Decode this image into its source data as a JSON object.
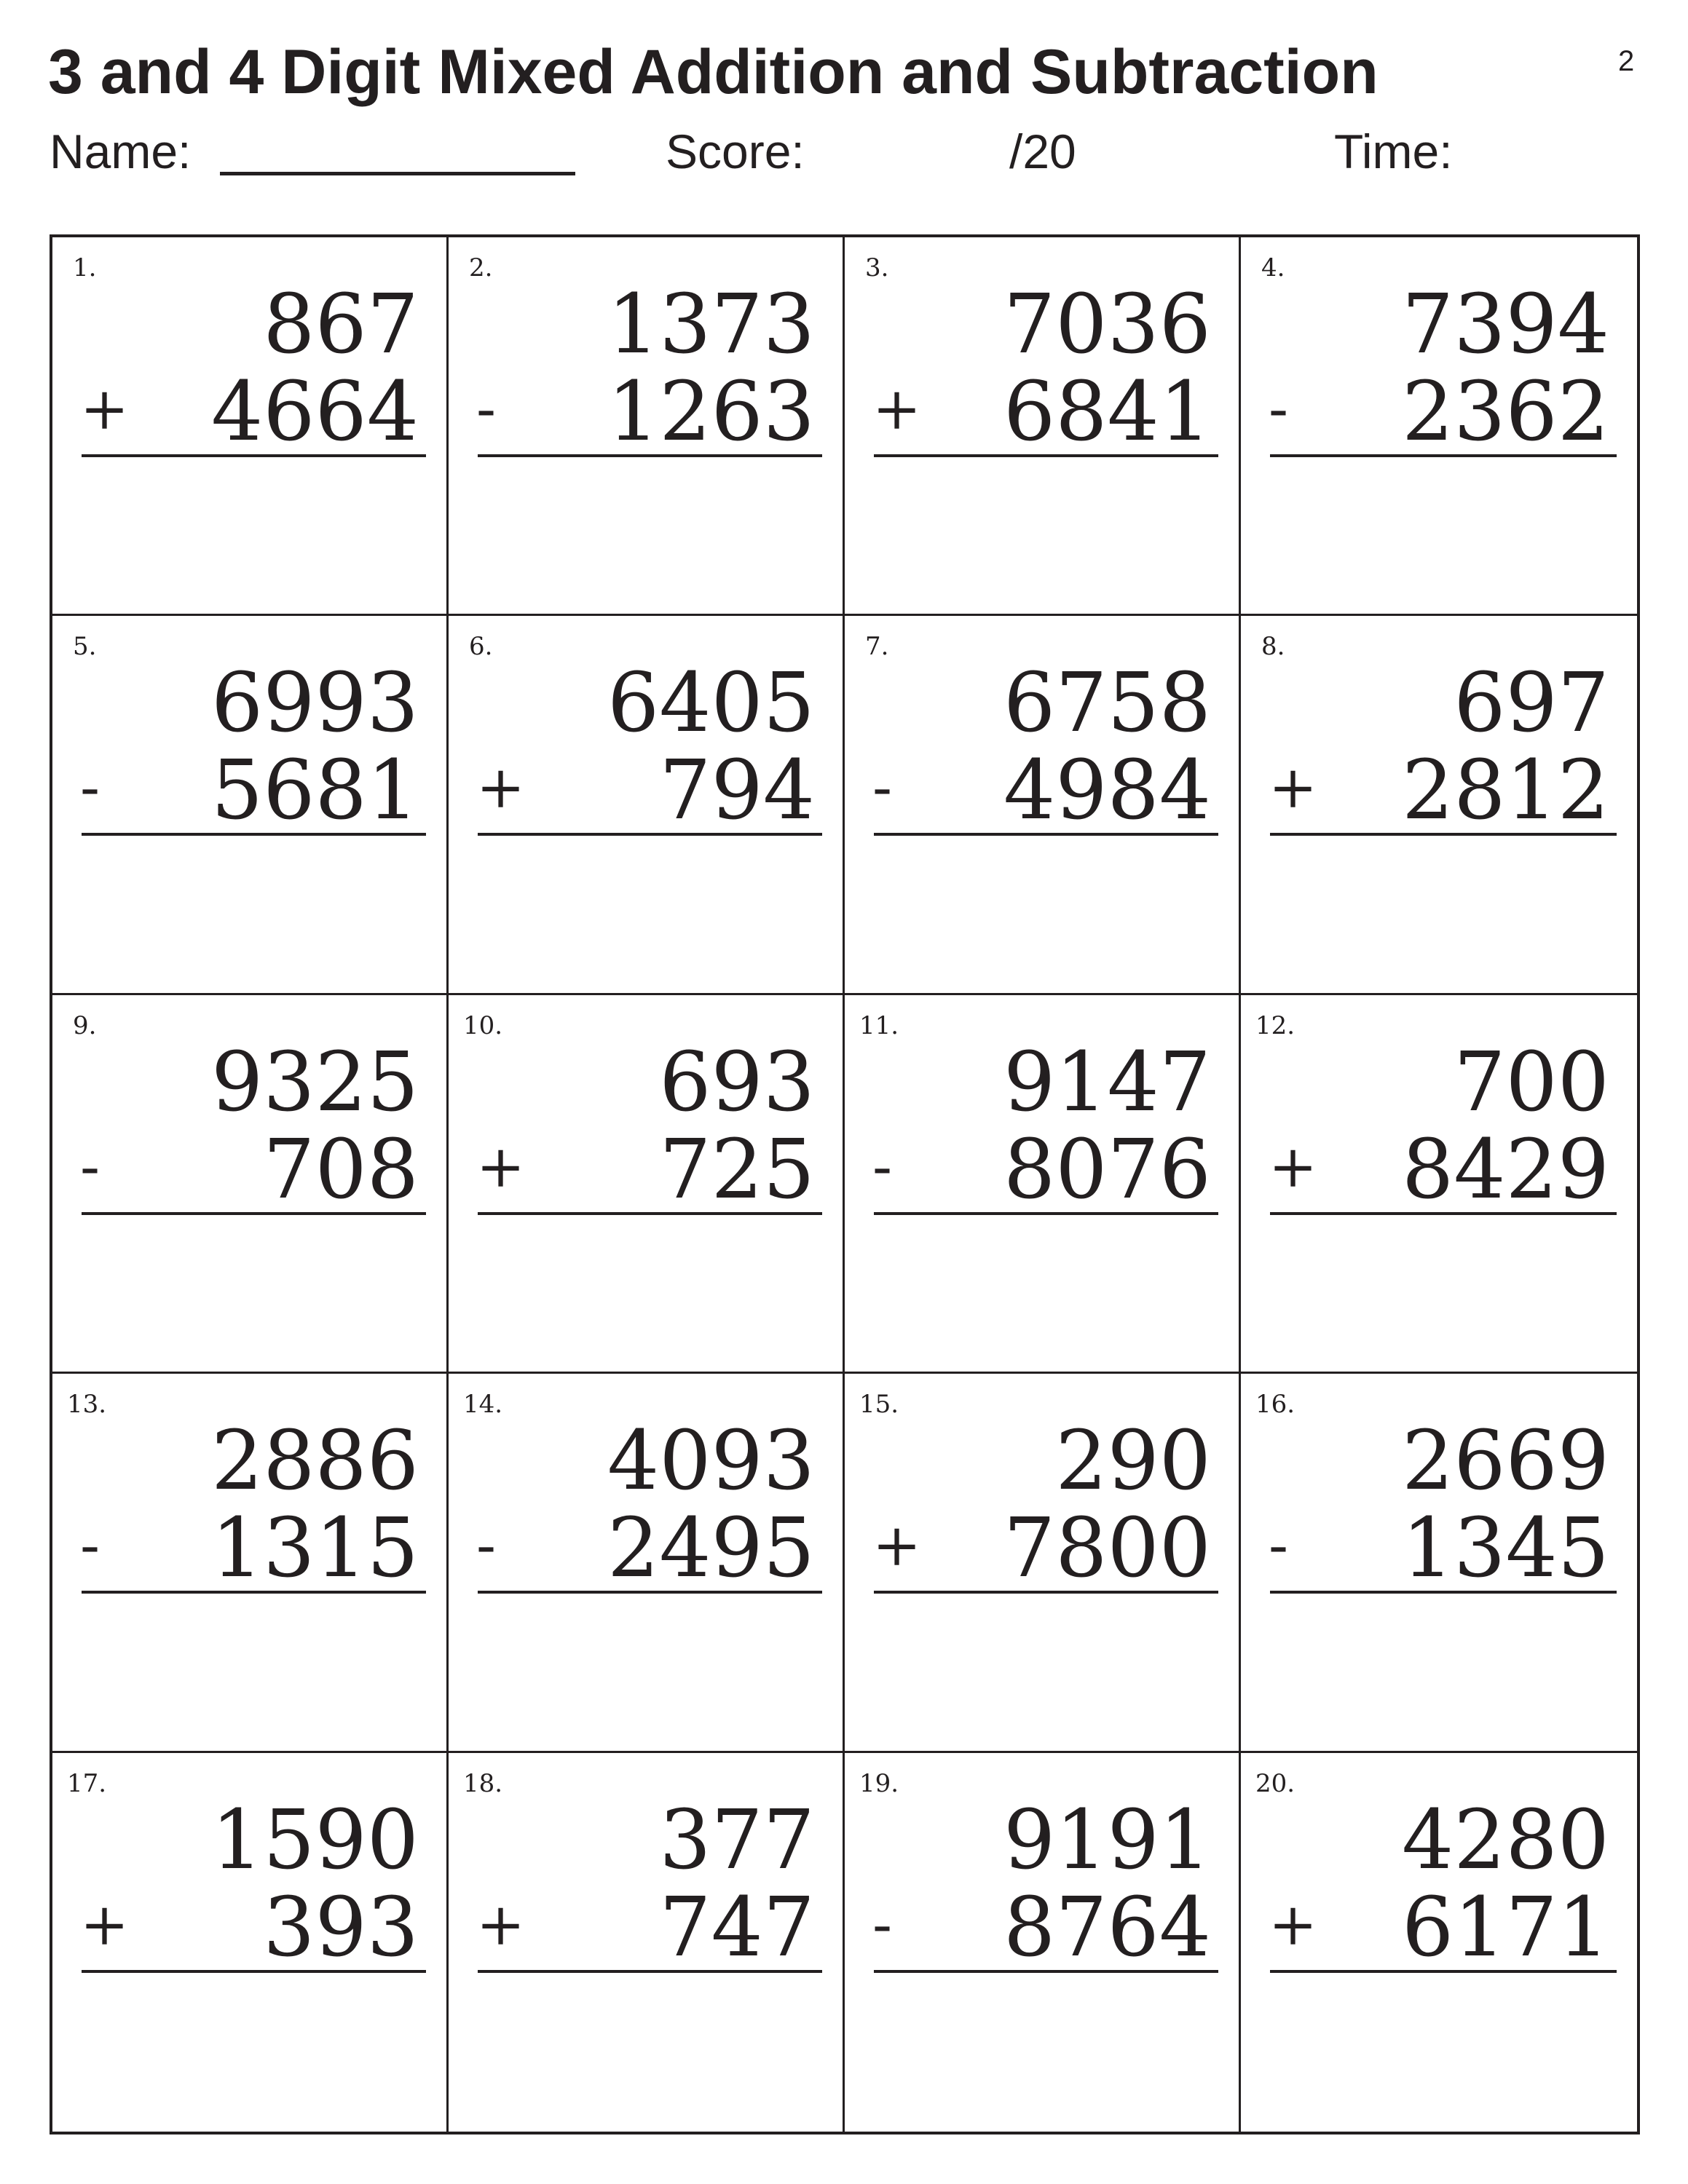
{
  "title": "3 and 4 Digit Mixed Addition and Subtraction",
  "page_number": "2",
  "header": {
    "name_label": "Name:",
    "score_label": "Score:",
    "score_total": "/20",
    "time_label": "Time:"
  },
  "problems": [
    {
      "n": "1.",
      "a": "867",
      "op": "+",
      "b": "4664"
    },
    {
      "n": "2.",
      "a": "1373",
      "op": "-",
      "b": "1263"
    },
    {
      "n": "3.",
      "a": "7036",
      "op": "+",
      "b": "6841"
    },
    {
      "n": "4.",
      "a": "7394",
      "op": "-",
      "b": "2362"
    },
    {
      "n": "5.",
      "a": "6993",
      "op": "-",
      "b": "5681"
    },
    {
      "n": "6.",
      "a": "6405",
      "op": "+",
      "b": "794"
    },
    {
      "n": "7.",
      "a": "6758",
      "op": "-",
      "b": "4984"
    },
    {
      "n": "8.",
      "a": "697",
      "op": "+",
      "b": "2812"
    },
    {
      "n": "9.",
      "a": "9325",
      "op": "-",
      "b": "708"
    },
    {
      "n": "10.",
      "a": "693",
      "op": "+",
      "b": "725"
    },
    {
      "n": "11.",
      "a": "9147",
      "op": "-",
      "b": "8076"
    },
    {
      "n": "12.",
      "a": "700",
      "op": "+",
      "b": "8429"
    },
    {
      "n": "13.",
      "a": "2886",
      "op": "-",
      "b": "1315"
    },
    {
      "n": "14.",
      "a": "4093",
      "op": "-",
      "b": "2495"
    },
    {
      "n": "15.",
      "a": "290",
      "op": "+",
      "b": "7800"
    },
    {
      "n": "16.",
      "a": "2669",
      "op": "-",
      "b": "1345"
    },
    {
      "n": "17.",
      "a": "1590",
      "op": "+",
      "b": "393"
    },
    {
      "n": "18.",
      "a": "377",
      "op": "+",
      "b": "747"
    },
    {
      "n": "19.",
      "a": "9191",
      "op": "-",
      "b": "8764"
    },
    {
      "n": "20.",
      "a": "4280",
      "op": "+",
      "b": "6171"
    }
  ]
}
